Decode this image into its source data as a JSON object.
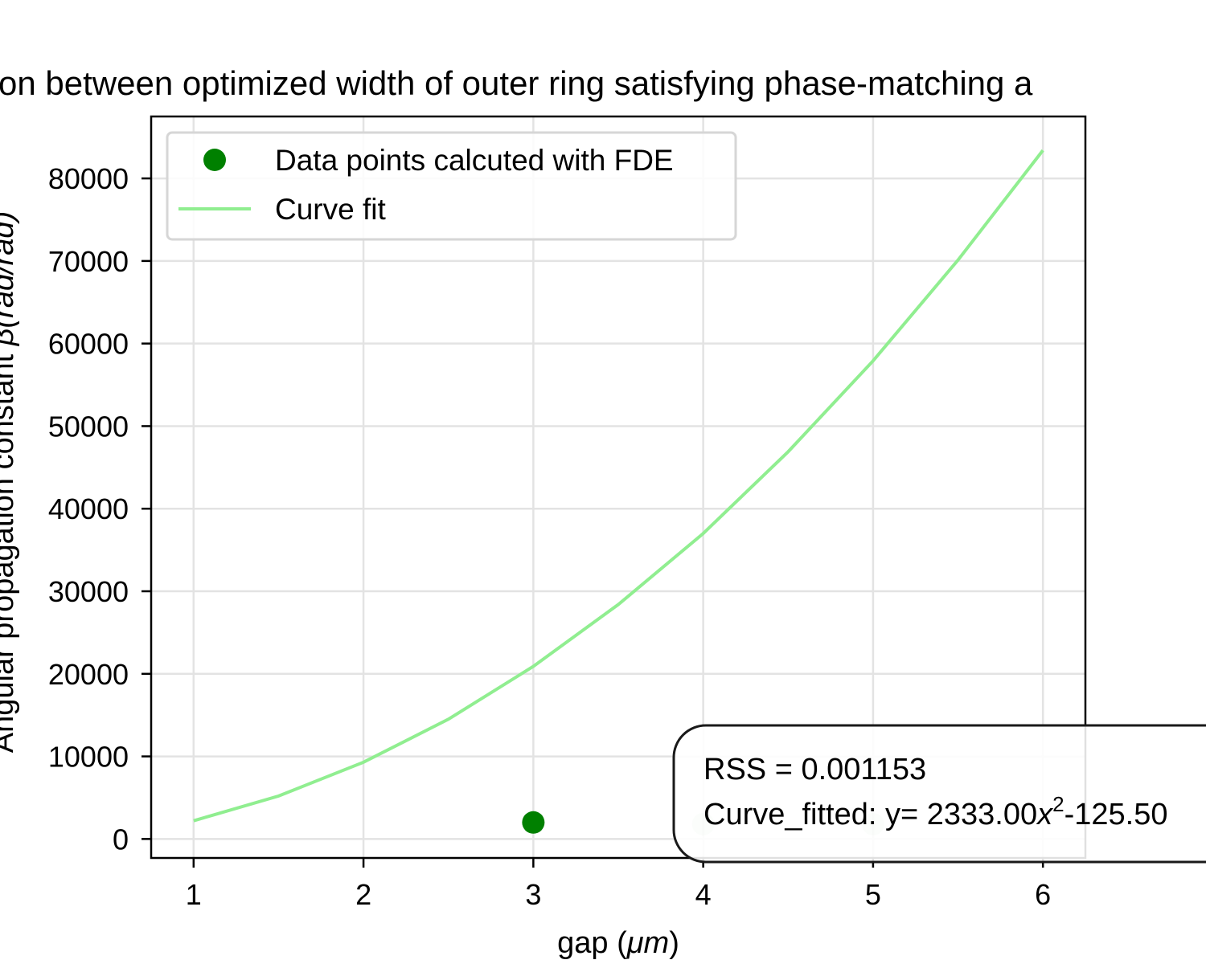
{
  "chart_data": {
    "type": "scatter",
    "title": "on between optimized width of outer ring satisfying phase-matching a",
    "xlabel": {
      "prefix": "gap (",
      "unit": "μm",
      "suffix": ")"
    },
    "ylabel": {
      "prefix": "Angular propagation constant ",
      "symbol": "β",
      "unit": "(rad/rad)"
    },
    "xlim": [
      0.75,
      6.25
    ],
    "ylim": [
      -2300,
      87500
    ],
    "x_ticks": [
      "1",
      "2",
      "3",
      "4",
      "5",
      "6"
    ],
    "y_ticks": [
      "0",
      "10000",
      "20000",
      "30000",
      "40000",
      "50000",
      "60000",
      "70000",
      "80000"
    ],
    "grid": true,
    "legend_position": "upper-left",
    "series": [
      {
        "name": "Data points calcuted with FDE",
        "kind": "scatter",
        "color": "#008000",
        "points": [
          {
            "x": 3,
            "y": 2000,
            "opacity": 1.0
          },
          {
            "x": 4,
            "y": 1800,
            "opacity": 0.15
          },
          {
            "x": 5,
            "y": 1800,
            "opacity": 0.15
          }
        ]
      },
      {
        "name": "Curve fit",
        "kind": "line",
        "color": "#90ee90",
        "x": [
          1.0,
          1.5,
          2.0,
          2.5,
          3.0,
          3.5,
          4.0,
          4.5,
          5.0,
          5.5,
          6.0
        ],
        "y": [
          2200,
          5200,
          9300,
          14500,
          20900,
          28400,
          37000,
          46900,
          57900,
          70100,
          83400
        ]
      }
    ],
    "annotation": {
      "rss": "RSS = 0.001153",
      "fit_prefix": "Curve_fitted: y= 2333.00",
      "fit_var": "x",
      "fit_exp": "2",
      "fit_rest": "-125.50"
    }
  }
}
